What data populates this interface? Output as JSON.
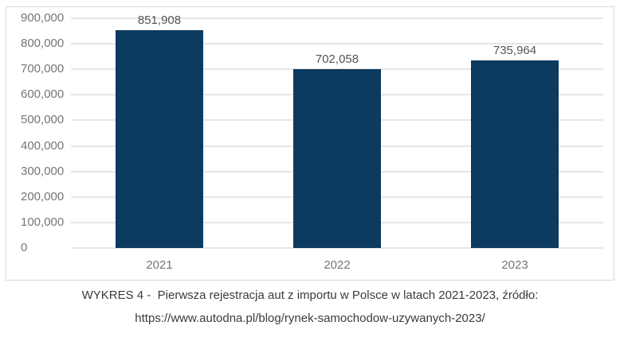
{
  "chart_data": {
    "type": "bar",
    "categories": [
      "2021",
      "2022",
      "2023"
    ],
    "values": [
      851908,
      702058,
      735964
    ],
    "value_labels": [
      "851,908",
      "702,058",
      "735,964"
    ],
    "title": "",
    "xlabel": "",
    "ylabel": "",
    "ylim": [
      0,
      900000
    ],
    "ytick_step": 100000,
    "yticks": [
      0,
      100000,
      200000,
      300000,
      400000,
      500000,
      600000,
      700000,
      800000,
      900000
    ],
    "ytick_labels": [
      "0",
      "100,000",
      "200,000",
      "300,000",
      "400,000",
      "500,000",
      "600,000",
      "700,000",
      "800,000",
      "900,000"
    ],
    "grid": true,
    "legend": "none"
  },
  "colors": {
    "bar": "#0d3a5f",
    "grid": "#e6e6e6",
    "axis_label": "#757575",
    "value_label": "#555555",
    "caption_text": "#3b3b3b",
    "frame_border": "#d9d9d9"
  },
  "caption": {
    "line1": "WYKRES 4 -  Pierwsza rejestracja aut z importu w Polsce w latach 2021-2023, źródło:",
    "line2": "https://www.autodna.pl/blog/rynek-samochodow-uzywanych-2023/"
  }
}
